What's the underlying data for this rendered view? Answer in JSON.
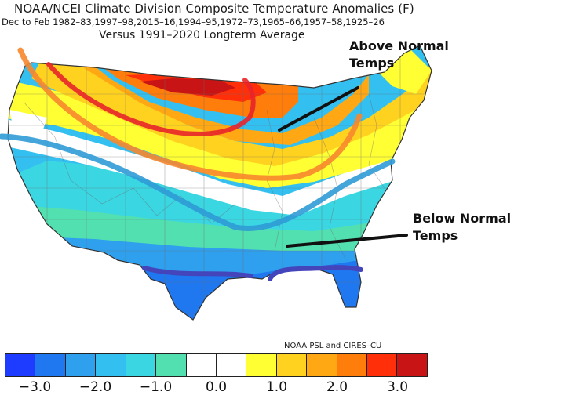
{
  "title": {
    "line1": "NOAA/NCEI Climate Division Composite Temperature Anomalies (F)",
    "line2": "Dec to Feb  1982–83,1997–98,2015–16,1994–95,1972–73,1965–66,1957–58,1925–26",
    "line3": "Versus 1991–2020 Longterm Average"
  },
  "annotations": {
    "above_line1": "Above Normal",
    "above_line2": "Temps",
    "below_line1": "Below Normal",
    "below_line2": "Temps"
  },
  "credit": "NOAA PSL and CIRES–CU",
  "colorbar": {
    "colors": [
      "#1e3cff",
      "#1f78f0",
      "#2fa0ee",
      "#33c0f0",
      "#3ad6e2",
      "#52e0b0",
      "#ffffff",
      "#ffffff",
      "#ffff33",
      "#ffd21f",
      "#ffa814",
      "#ff7d0a",
      "#ff2f0a",
      "#c81414"
    ],
    "ticks": [
      "−3.0",
      "−2.0",
      "−1.0",
      "0.0",
      "1.0",
      "2.0",
      "3.0"
    ]
  },
  "drawn_lines": {
    "colors": [
      "#e8232a",
      "#f7872d",
      "#2f9bd6",
      "#4444bb"
    ]
  }
}
